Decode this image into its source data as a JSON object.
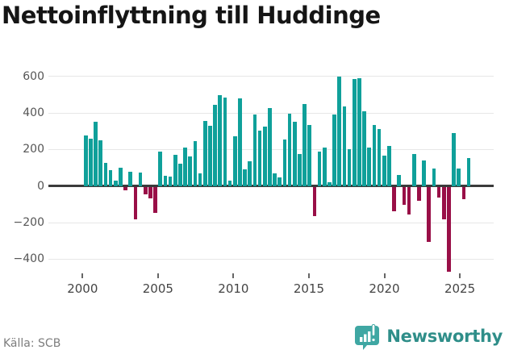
{
  "title": "Nettoinflyttning till Huddinge",
  "footer": {
    "source": "Källa: SCB",
    "brand": "Newsworthy"
  },
  "colors": {
    "positive_bar": "#0fa09a",
    "negative_bar": "#990f47",
    "zero_line": "#3b3b3b",
    "gridline": "#e7e7e7",
    "axis_text": "#555555",
    "brand_teal": "#2f8e89",
    "brand_icon": "#3fa7a3"
  },
  "icons": {
    "logo": "newsworthy-speech-bubble-bar-chart-icon"
  },
  "chart_data": {
    "type": "bar",
    "title": "Nettoinflyttning till Huddinge",
    "xlabel": "",
    "ylabel": "",
    "ylim": [
      -500,
      660
    ],
    "y_ticks": [
      600,
      400,
      200,
      0,
      -200,
      -400
    ],
    "x_tick_labels": [
      "2000",
      "2005",
      "2010",
      "2015",
      "2020",
      "2025"
    ],
    "grid": "horizontal",
    "legend": "none",
    "periods": [
      "2000-1",
      "2000-2",
      "2000-3",
      "2001-1",
      "2001-2",
      "2001-3",
      "2002-1",
      "2002-2",
      "2002-3",
      "2003-1",
      "2003-2",
      "2003-3",
      "2004-1",
      "2004-2",
      "2004-3",
      "2005-1",
      "2005-2",
      "2005-3",
      "2006-1",
      "2006-2",
      "2006-3",
      "2007-1",
      "2007-2",
      "2007-3",
      "2008-1",
      "2008-2",
      "2008-3",
      "2009-1",
      "2009-2",
      "2009-3",
      "2010-1",
      "2010-2",
      "2010-3",
      "2011-1",
      "2011-2",
      "2011-3",
      "2012-1",
      "2012-2",
      "2012-3",
      "2013-1",
      "2013-2",
      "2013-3",
      "2014-1",
      "2014-2",
      "2014-3",
      "2015-1",
      "2015-2",
      "2015-3",
      "2016-1",
      "2016-2",
      "2016-3",
      "2017-1",
      "2017-2",
      "2017-3",
      "2018-1",
      "2018-2",
      "2018-3",
      "2019-1",
      "2019-2",
      "2019-3",
      "2020-1",
      "2020-2",
      "2020-3",
      "2021-1",
      "2021-2",
      "2021-3",
      "2022-1",
      "2022-2",
      "2022-3",
      "2023-1",
      "2023-2",
      "2023-3",
      "2024-1",
      "2024-2",
      "2024-3",
      "2025-1",
      "2025-2",
      "2025-3"
    ],
    "values": [
      275,
      260,
      350,
      250,
      125,
      85,
      30,
      100,
      -15,
      80,
      -175,
      75,
      -40,
      -60,
      -140,
      190,
      55,
      50,
      170,
      120,
      210,
      160,
      245,
      70,
      355,
      330,
      445,
      495,
      485,
      30,
      270,
      480,
      90,
      135,
      390,
      305,
      325,
      425,
      70,
      45,
      255,
      395,
      350,
      175,
      450,
      335,
      -160,
      190,
      210,
      20,
      390,
      600,
      435,
      200,
      585,
      590,
      410,
      210,
      335,
      310,
      165,
      220,
      -130,
      62,
      -95,
      -150,
      175,
      -75,
      140,
      -300,
      95,
      -55,
      -175,
      -464,
      290,
      97,
      -66,
      153
    ]
  }
}
